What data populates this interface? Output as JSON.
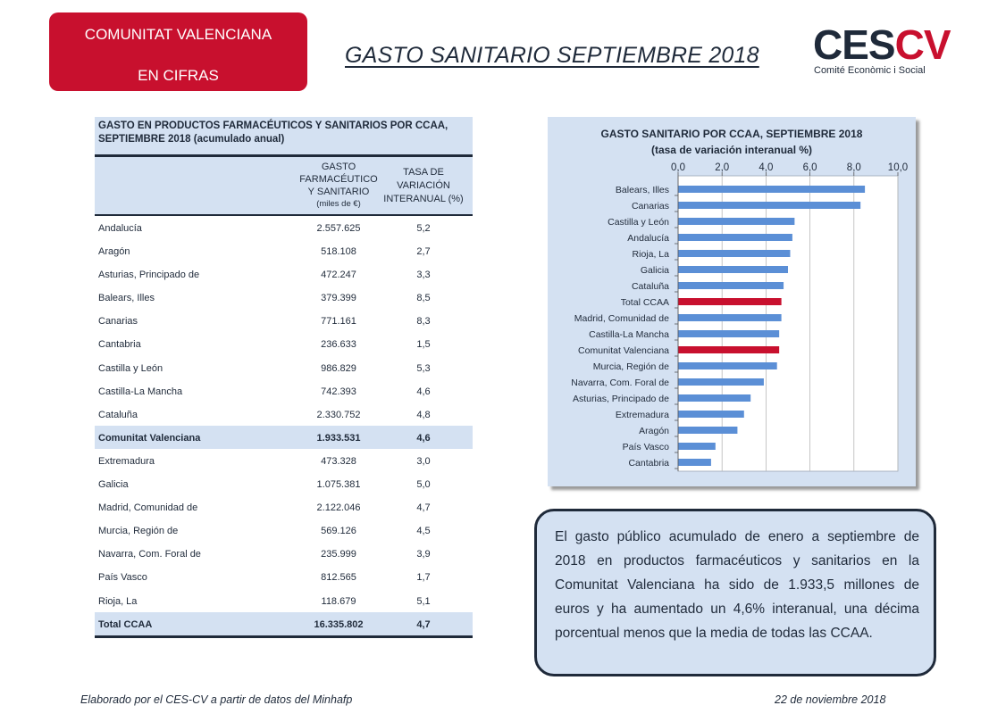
{
  "badge": {
    "line1": "COMUNITAT VALENCIANA",
    "line2": "EN CIFRAS"
  },
  "page_title": "GASTO SANITARIO  SEPTIEMBRE 2018",
  "logo": {
    "letters_dark": "CES",
    "letters_red": "CV",
    "subtitle": "Comité Econòmic i Social"
  },
  "table": {
    "title_line1": "GASTO EN PRODUCTOS FARMACÉUTICOS Y SANITARIOS POR CCAA,",
    "title_line2": "SEPTIEMBRE 2018 (acumulado anual)",
    "col1_line1": "GASTO",
    "col1_line2": "FARMACÉUTICO",
    "col1_line3": "Y SANITARIO",
    "col1_unit": "(miles de €)",
    "col2_line1": "TASA DE",
    "col2_line2": "VARIACIÓN",
    "col2_line3": "INTERANUAL (%)",
    "rows": [
      {
        "name": "Andalucía",
        "value": "2.557.625",
        "rate": "5,2",
        "highlight": false
      },
      {
        "name": "Aragón",
        "value": "518.108",
        "rate": "2,7",
        "highlight": false
      },
      {
        "name": "Asturias, Principado de",
        "value": "472.247",
        "rate": "3,3",
        "highlight": false
      },
      {
        "name": "Balears, Illes",
        "value": "379.399",
        "rate": "8,5",
        "highlight": false
      },
      {
        "name": "Canarias",
        "value": "771.161",
        "rate": "8,3",
        "highlight": false
      },
      {
        "name": "Cantabria",
        "value": "236.633",
        "rate": "1,5",
        "highlight": false
      },
      {
        "name": "Castilla y León",
        "value": "986.829",
        "rate": "5,3",
        "highlight": false
      },
      {
        "name": "Castilla-La Mancha",
        "value": "742.393",
        "rate": "4,6",
        "highlight": false
      },
      {
        "name": "Cataluña",
        "value": "2.330.752",
        "rate": "4,8",
        "highlight": false
      },
      {
        "name": "Comunitat Valenciana",
        "value": "1.933.531",
        "rate": "4,6",
        "highlight": true
      },
      {
        "name": "Extremadura",
        "value": "473.328",
        "rate": "3,0",
        "highlight": false
      },
      {
        "name": "Galicia",
        "value": "1.075.381",
        "rate": "5,0",
        "highlight": false
      },
      {
        "name": "Madrid, Comunidad de",
        "value": "2.122.046",
        "rate": "4,7",
        "highlight": false
      },
      {
        "name": "Murcia, Región de",
        "value": "569.126",
        "rate": "4,5",
        "highlight": false
      },
      {
        "name": "Navarra, Com. Foral de",
        "value": "235.999",
        "rate": "3,9",
        "highlight": false
      },
      {
        "name": "País Vasco",
        "value": "812.565",
        "rate": "1,7",
        "highlight": false
      },
      {
        "name": "Rioja, La",
        "value": "118.679",
        "rate": "5,1",
        "highlight": false
      },
      {
        "name": "Total CCAA",
        "value": "16.335.802",
        "rate": "4,7",
        "highlight": true
      }
    ]
  },
  "chart_data": {
    "type": "bar",
    "orientation": "horizontal",
    "title": "GASTO SANITARIO POR CCAA, SEPTIEMBRE 2018",
    "subtitle": "(tasa de variación interanual %)",
    "xlim": [
      0,
      10
    ],
    "ticks": [
      "0,0",
      "2,0",
      "4,0",
      "6,0",
      "8,0",
      "10,0"
    ],
    "tick_values": [
      0,
      2,
      4,
      6,
      8,
      10
    ],
    "axis_position": "top",
    "categories": [
      "Balears, Illes",
      "Canarias",
      "Castilla y León",
      "Andalucía",
      "Rioja, La",
      "Galicia",
      "Cataluña",
      "Total CCAA",
      "Madrid, Comunidad de",
      "Castilla-La Mancha",
      "Comunitat Valenciana",
      "Murcia, Región de",
      "Navarra, Com. Foral de",
      "Asturias, Principado de",
      "Extremadura",
      "Aragón",
      "País Vasco",
      "Cantabria"
    ],
    "values": [
      8.5,
      8.3,
      5.3,
      5.2,
      5.1,
      5.0,
      4.8,
      4.7,
      4.7,
      4.6,
      4.6,
      4.5,
      3.9,
      3.3,
      3.0,
      2.7,
      1.7,
      1.5
    ],
    "highlighted": [
      "Total CCAA",
      "Comunitat Valenciana"
    ],
    "colors": {
      "bar": "#5b8fd6",
      "highlight": "#c8102e",
      "background": "#d4e1f2",
      "plot": "#ffffff"
    },
    "grid": true
  },
  "callout": {
    "text": "El gasto público acumulado de enero a septiembre de 2018 en productos farmacéuticos y sanitarios en la Comunitat Valenciana ha sido de 1.933,5 millones de euros y ha aumentado un 4,6% interanual, una décima porcentual menos que la media de todas las CCAA."
  },
  "footer": {
    "source": "Elaborado por el CES-CV a partir de datos del Minhafp",
    "date": "22 de noviembre 2018"
  }
}
